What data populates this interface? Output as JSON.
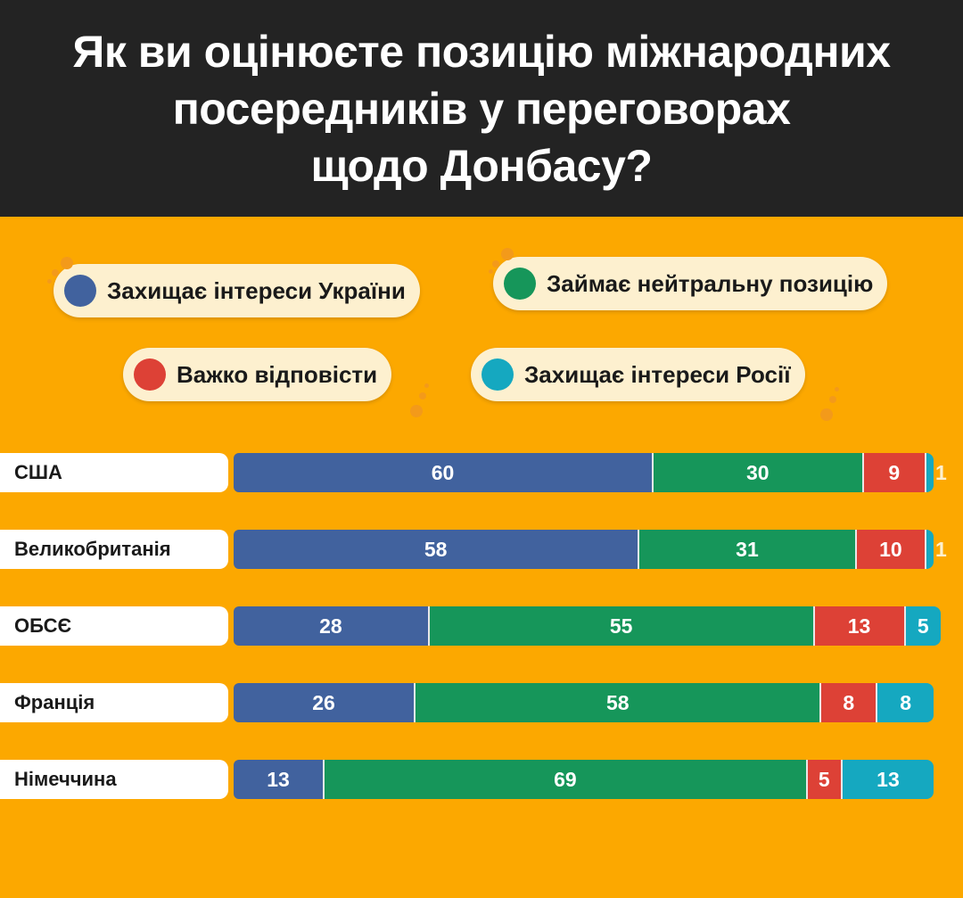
{
  "header": {
    "title": "Як ви оцінюєте позицію міжнародних\nпосередників у переговорах\nщодо Донбасу?"
  },
  "chart_data": {
    "type": "bar",
    "orientation": "horizontal",
    "stacked": true,
    "title": "Як ви оцінюєте позицію міжнародних посередників у переговорах щодо Донбасу?",
    "categories": [
      "США",
      "Великобританія",
      "ОБСЄ",
      "Франція",
      "Німеччина"
    ],
    "series": [
      {
        "name": "Захищає інтереси України",
        "color": "#41629e",
        "values": [
          60,
          58,
          28,
          26,
          13
        ]
      },
      {
        "name": "Займає нейтральну позицію",
        "color": "#16965a",
        "values": [
          30,
          31,
          55,
          58,
          69
        ]
      },
      {
        "name": "Важко відповісти",
        "color": "#dd4136",
        "values": [
          9,
          10,
          13,
          8,
          5
        ]
      },
      {
        "name": "Захищає інтереси Росії",
        "color": "#15a8c0",
        "values": [
          1,
          1,
          5,
          8,
          13
        ]
      }
    ],
    "xlim": [
      0,
      100
    ],
    "legend": "top",
    "grid": false
  },
  "colors": {
    "background": "#fca800",
    "header": "#232323"
  }
}
